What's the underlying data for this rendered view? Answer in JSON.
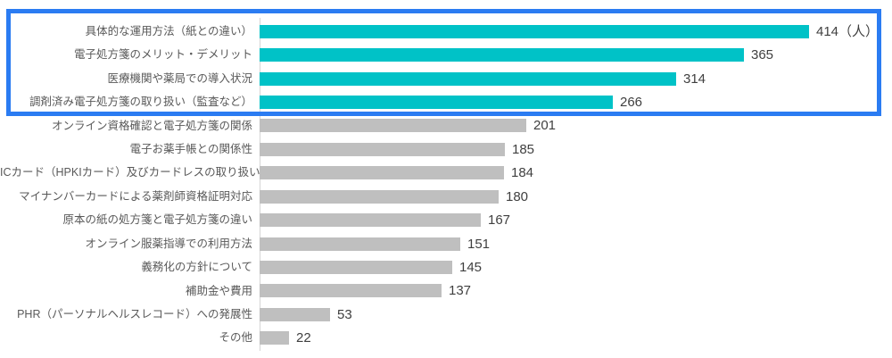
{
  "chart_data": {
    "type": "bar",
    "orientation": "horizontal",
    "title": "",
    "xlabel": "",
    "ylabel": "",
    "unit_label": "（人）",
    "grid": false,
    "legend": "none",
    "xlim": [
      0,
      450
    ],
    "highlighted_rows": 4,
    "colors": {
      "highlight_bar": "#00C2C7",
      "default_bar": "#BFBFBF",
      "highlight_box_border": "#2B7CF2",
      "axis_line": "#D5D5D5",
      "category_text": "#595959",
      "value_text": "#3F3F3F"
    },
    "categories": [
      "具体的な運用方法（紙との違い）",
      "電子処方箋のメリット・デメリット",
      "医療機関や薬局での導入状況",
      "調剤済み電子処方箋の取り扱い（監査など）",
      "オンライン資格確認と電子処方箋の関係",
      "電子お薬手帳との関係性",
      "ICカード（HPKIカード）及びカードレスの取り扱い",
      "マイナンバーカードによる薬剤師資格証明対応",
      "原本の紙の処方箋と電子処方箋の違い",
      "オンライン服薬指導での利用方法",
      "義務化の方針について",
      "補助金や費用",
      "PHR（パーソナルヘルスレコード）への発展性",
      "その他"
    ],
    "values": [
      414,
      365,
      314,
      266,
      201,
      185,
      184,
      180,
      167,
      151,
      145,
      137,
      53,
      22
    ],
    "value_labels": [
      "414（人）",
      "365",
      "314",
      "266",
      "201",
      "185",
      "184",
      "180",
      "167",
      "151",
      "145",
      "137",
      "53",
      "22"
    ]
  }
}
